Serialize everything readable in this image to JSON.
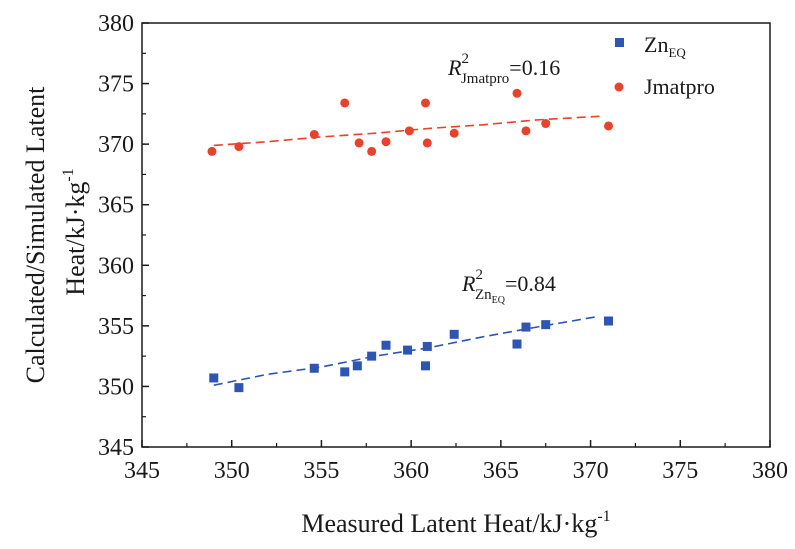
{
  "chart_data": {
    "type": "scatter",
    "xlabel_main": "Measured Latent Heat/kJ·kg",
    "xlabel_sup": "-1",
    "ylabel_line1": "Calculated/Simulated Latent",
    "ylabel_line2_main": "Heat/kJ·kg",
    "ylabel_line2_sup": "-1",
    "xlim": [
      345,
      380
    ],
    "ylim": [
      345,
      380
    ],
    "xticks": [
      "345",
      "350",
      "355",
      "360",
      "365",
      "370",
      "375",
      "380"
    ],
    "yticks": [
      "345",
      "350",
      "355",
      "360",
      "365",
      "370",
      "375",
      "380"
    ],
    "grid": false,
    "legend_position": "top-right",
    "series": [
      {
        "name_main": "Zn",
        "name_sub": "EQ",
        "color": "#2e55b3",
        "marker": "square",
        "fit_line": [
          [
            349,
            350.1
          ],
          [
            352,
            351.0
          ],
          [
            355,
            351.6
          ],
          [
            358,
            352.5
          ],
          [
            361,
            353.2
          ],
          [
            364,
            354.1
          ],
          [
            367,
            354.9
          ],
          [
            370.5,
            355.8
          ]
        ],
        "points": [
          {
            "x": 349.0,
            "y": 350.7
          },
          {
            "x": 350.4,
            "y": 349.9
          },
          {
            "x": 354.6,
            "y": 351.5
          },
          {
            "x": 356.3,
            "y": 351.2
          },
          {
            "x": 357.0,
            "y": 351.7
          },
          {
            "x": 357.8,
            "y": 352.5
          },
          {
            "x": 358.6,
            "y": 353.4
          },
          {
            "x": 359.8,
            "y": 353.0
          },
          {
            "x": 360.8,
            "y": 351.7
          },
          {
            "x": 360.9,
            "y": 353.3
          },
          {
            "x": 362.4,
            "y": 354.3
          },
          {
            "x": 365.9,
            "y": 353.5
          },
          {
            "x": 366.4,
            "y": 354.9
          },
          {
            "x": 367.5,
            "y": 355.1
          },
          {
            "x": 371.0,
            "y": 355.4
          }
        ]
      },
      {
        "name_main": "Jmatpro",
        "name_sub": "",
        "color": "#e8412c",
        "marker": "circle",
        "fit_line": [
          [
            349,
            369.9
          ],
          [
            352,
            370.2
          ],
          [
            355,
            370.6
          ],
          [
            358,
            370.9
          ],
          [
            361,
            371.3
          ],
          [
            364,
            371.6
          ],
          [
            367,
            372.0
          ],
          [
            370.5,
            372.3
          ]
        ],
        "points": [
          {
            "x": 348.9,
            "y": 369.4
          },
          {
            "x": 350.4,
            "y": 369.8
          },
          {
            "x": 354.6,
            "y": 370.8
          },
          {
            "x": 356.3,
            "y": 373.4
          },
          {
            "x": 357.1,
            "y": 370.1
          },
          {
            "x": 357.8,
            "y": 369.4
          },
          {
            "x": 358.6,
            "y": 370.2
          },
          {
            "x": 359.9,
            "y": 371.1
          },
          {
            "x": 360.8,
            "y": 373.4
          },
          {
            "x": 360.9,
            "y": 370.1
          },
          {
            "x": 362.4,
            "y": 370.9
          },
          {
            "x": 365.9,
            "y": 374.2
          },
          {
            "x": 366.4,
            "y": 371.1
          },
          {
            "x": 367.5,
            "y": 371.7
          },
          {
            "x": 371.0,
            "y": 371.5
          }
        ]
      }
    ],
    "annotations": [
      {
        "series": "Jmatpro",
        "prefix": "R",
        "sup": "2",
        "sub": "Jmatpro",
        "sub_sub": "",
        "value": "=0.16"
      },
      {
        "series": "ZnEQ",
        "prefix": "R",
        "sup": "2",
        "sub": "Zn",
        "sub_sub": "EQ",
        "value": "=0.84"
      }
    ]
  }
}
